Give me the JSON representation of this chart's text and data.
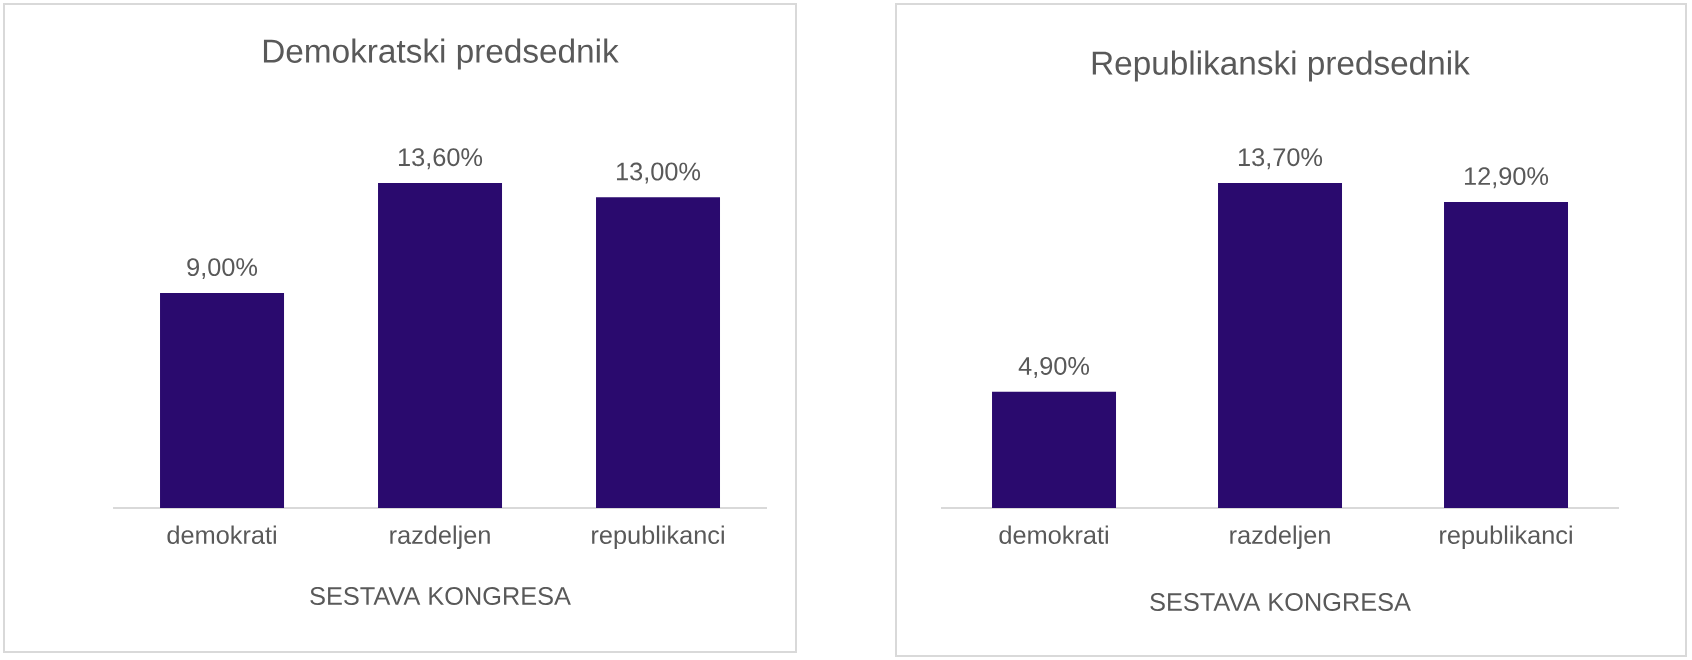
{
  "chart_data": [
    {
      "type": "bar",
      "title": "Demokratski predsednik",
      "xlabel": "SESTAVA KONGRESA",
      "categories": [
        "demokrati",
        "razdeljen",
        "republikanci"
      ],
      "values": [
        9.0,
        13.6,
        13.0
      ],
      "value_labels": [
        "9,00%",
        "13,60%",
        "13,00%"
      ],
      "color": "#2a0a6e"
    },
    {
      "type": "bar",
      "title": "Republikanski predsednik",
      "xlabel": "SESTAVA KONGRESA",
      "categories": [
        "demokrati",
        "razdeljen",
        "republikanci"
      ],
      "values": [
        4.9,
        13.7,
        12.9
      ],
      "value_labels": [
        "4,90%",
        "13,70%",
        "12,90%"
      ],
      "color": "#2a0a6e"
    }
  ]
}
